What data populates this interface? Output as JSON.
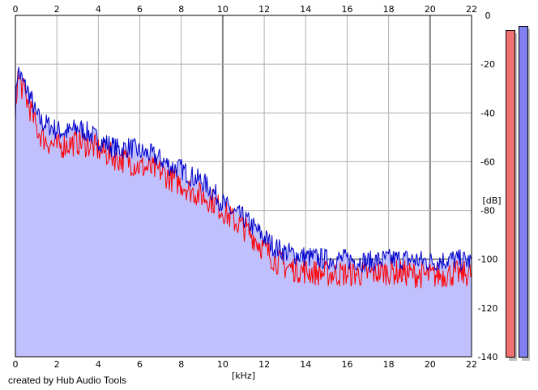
{
  "chart_data": {
    "type": "area",
    "title": "",
    "xlabel": "[kHz]",
    "ylabel": "[dB]",
    "xlim": [
      0,
      22
    ],
    "ylim": [
      -140,
      0
    ],
    "x_ticks": [
      "0",
      "2",
      "4",
      "6",
      "8",
      "10",
      "12",
      "14",
      "16",
      "18",
      "20",
      "22"
    ],
    "y_ticks": [
      "0",
      "-20",
      "-40",
      "-60",
      "-80",
      "-100",
      "-120",
      "-140"
    ],
    "grid": true,
    "legend": "none",
    "x_khz": [
      0,
      0.1,
      0.2,
      0.4,
      0.6,
      0.8,
      1.0,
      1.3,
      1.6,
      2.0,
      2.5,
      3.0,
      3.5,
      4.0,
      4.5,
      5.0,
      5.5,
      6.0,
      6.5,
      7.0,
      7.5,
      8.0,
      8.5,
      9.0,
      9.5,
      10.0,
      10.5,
      11.0,
      11.5,
      12.0,
      12.5,
      13.0,
      13.5,
      14.0,
      15.0,
      16.0,
      17.0,
      18.0,
      19.0,
      20.0,
      21.0,
      22.0
    ],
    "series": [
      {
        "color": "#0000cc",
        "values": [
          -40,
          -22,
          -24,
          -28,
          -31,
          -35,
          -41,
          -44,
          -45,
          -47,
          -48,
          -46,
          -48,
          -51,
          -53,
          -55,
          -54,
          -56,
          -57,
          -59,
          -62,
          -63,
          -66,
          -68,
          -72,
          -77,
          -81,
          -83,
          -87,
          -91,
          -95,
          -97,
          -98,
          -99,
          -100,
          -100,
          -101,
          -100,
          -100,
          -101,
          -100,
          -101
        ]
      },
      {
        "color": "#ff0000",
        "values": [
          -40,
          -25,
          -27,
          -31,
          -36,
          -40,
          -46,
          -50,
          -52,
          -54,
          -53,
          -52,
          -53,
          -55,
          -57,
          -59,
          -60,
          -62,
          -63,
          -64,
          -67,
          -69,
          -72,
          -74,
          -76,
          -80,
          -84,
          -87,
          -91,
          -96,
          -100,
          -103,
          -104,
          -105,
          -106,
          -106,
          -106,
          -105,
          -106,
          -107,
          -106,
          -106
        ]
      }
    ],
    "colors": {
      "fill": "#c0c0ff",
      "blue": "#0000cc",
      "red": "#ff0000",
      "grid": "#b0b0b0",
      "major_grid": "#808080"
    }
  },
  "meters": {
    "left_color": "#f07070",
    "right_color": "#8080f0"
  },
  "footer": {
    "credit": "created by Hub Audio Tools"
  }
}
